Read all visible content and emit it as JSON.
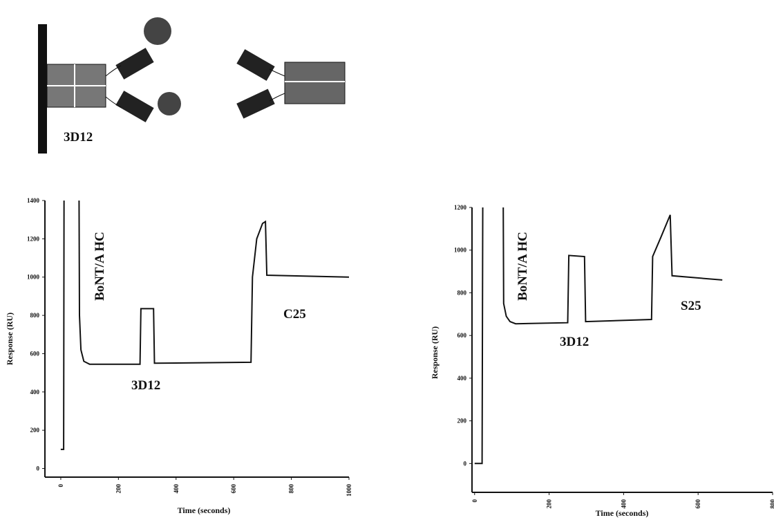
{
  "diagram": {
    "label": "3D12"
  },
  "chart_data": [
    {
      "type": "line",
      "xlabel": "Time  (seconds)",
      "ylabel": "Response  (RU)",
      "xlim": [
        -55,
        1000
      ],
      "ylim": [
        -45,
        1400
      ],
      "xticks": [
        0,
        200,
        400,
        600,
        800,
        1000
      ],
      "yticks": [
        0,
        200,
        400,
        600,
        800,
        1000,
        1200,
        1400
      ],
      "annotations": [
        "BoNT/A HC",
        "3D12",
        "C25"
      ],
      "series": [
        {
          "color": "#111111",
          "x": [
            0,
            10,
            12,
            62,
            65,
            70,
            80,
            100,
            275,
            278,
            322,
            325,
            660,
            665,
            680,
            700,
            710,
            715,
            1000
          ],
          "values": [
            100,
            100,
            2000,
            2000,
            800,
            620,
            560,
            545,
            545,
            835,
            835,
            550,
            555,
            1000,
            1200,
            1280,
            1290,
            1010,
            1000
          ]
        }
      ]
    },
    {
      "type": "line",
      "xlabel": "Time  (seconds)",
      "ylabel": "Response  (RU)",
      "xlim": [
        -7,
        800
      ],
      "ylim": [
        -135,
        1200
      ],
      "xticks": [
        0,
        200,
        400,
        600,
        800
      ],
      "yticks": [
        0,
        200,
        400,
        600,
        800,
        1000,
        1200
      ],
      "annotations": [
        "BoNT/A HC",
        "3D12",
        "S25"
      ],
      "series": [
        {
          "color": "#111111",
          "x": [
            0,
            20,
            23,
            75,
            78,
            85,
            95,
            110,
            250,
            253,
            295,
            298,
            475,
            478,
            500,
            525,
            530,
            665
          ],
          "values": [
            0,
            0,
            2000,
            2000,
            750,
            690,
            665,
            655,
            660,
            975,
            970,
            665,
            675,
            970,
            1060,
            1165,
            880,
            860
          ]
        }
      ]
    }
  ]
}
